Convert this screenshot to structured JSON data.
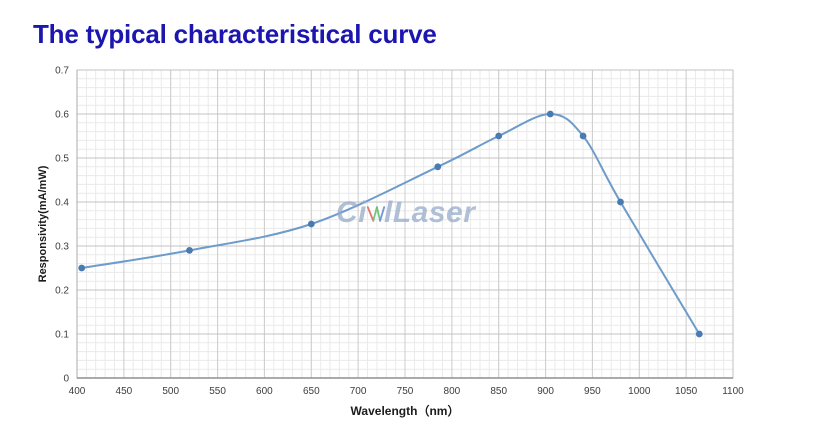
{
  "title": {
    "text": "The typical characteristical curve",
    "color": "#1c16b0"
  },
  "watermark": {
    "text": "CivilLaser",
    "prefix": "Ci",
    "suffix": "lLaser",
    "color": "#92a9c9",
    "logo_colors": [
      "#d94437",
      "#3faf4c",
      "#3a6fd0"
    ]
  },
  "chart_data": {
    "type": "line",
    "title": "",
    "xlabel": "Wavelength（nm）",
    "ylabel": "Responsivity(mA/mW)",
    "series": [
      {
        "name": "Responsivity",
        "x": [
          405,
          520,
          650,
          785,
          850,
          905,
          940,
          980,
          1064
        ],
        "y": [
          0.25,
          0.29,
          0.35,
          0.48,
          0.55,
          0.6,
          0.55,
          0.4,
          0.1
        ]
      }
    ],
    "xlim": [
      400,
      1100
    ],
    "ylim": [
      0,
      0.7
    ],
    "x_ticks": [
      400,
      450,
      500,
      550,
      600,
      650,
      700,
      750,
      800,
      850,
      900,
      950,
      1000,
      1050,
      1100
    ],
    "y_ticks": [
      "0",
      "0.1",
      "0.2",
      "0.3",
      "0.4",
      "0.5",
      "0.6",
      "0.7"
    ],
    "x_minor_step": 10,
    "y_minor_step": 0.02,
    "grid": "major+minor",
    "legend": "none",
    "marker": "circle",
    "colors": {
      "line": "#6d9bca",
      "marker": "#4a7ab2",
      "grid_major_h": "#c3c3c3",
      "grid_major_v": "#cdcdcd",
      "grid_minor": "#eaeaea",
      "plot_border": "#c2c2c2",
      "axis_bottom": "#8f8f8f",
      "axis_left": "#ababab",
      "tick_label": "#3d3d3d",
      "axis_title": "#1c1c1c"
    }
  }
}
